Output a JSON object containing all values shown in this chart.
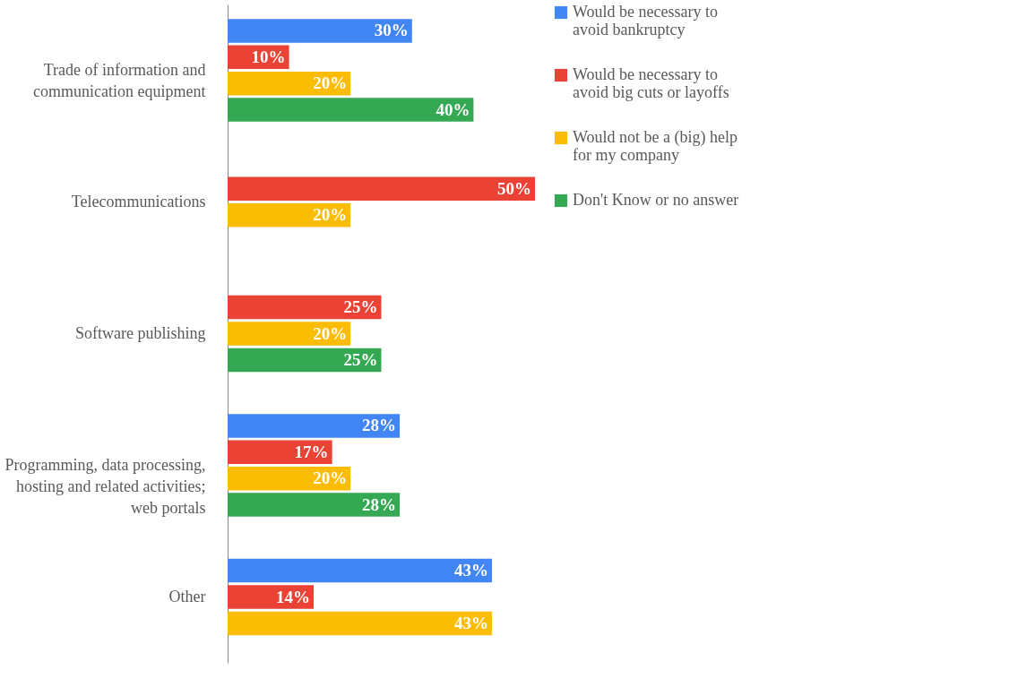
{
  "chart_data": {
    "type": "bar",
    "orientation": "horizontal",
    "legend": "right",
    "categories": [
      "Trade of information and communication equipment",
      "Telecommunications",
      "Software publishing",
      "Programming, data processing, hosting and related activities; web portals",
      "Other"
    ],
    "series": [
      {
        "name": "Would be necessary to avoid bankruptcy",
        "color": "#4285f4",
        "values": [
          30,
          null,
          null,
          28,
          43
        ],
        "value_labels": [
          "30%",
          null,
          null,
          "28%",
          "43%"
        ]
      },
      {
        "name": "Would be necessary to avoid big cuts or layoffs",
        "color": "#ea4335",
        "values": [
          10,
          50,
          25,
          17,
          14
        ],
        "value_labels": [
          "10%",
          "50%",
          "25%",
          "17%",
          "14%"
        ]
      },
      {
        "name": "Would not be a (big) help for my company",
        "color": "#fbbc04",
        "values": [
          20,
          20,
          20,
          20,
          43
        ],
        "value_labels": [
          "20%",
          "20%",
          "20%",
          "20%",
          "43%"
        ]
      },
      {
        "name": "Don't Know or no answer",
        "color": "#34a853",
        "values": [
          40,
          null,
          25,
          28,
          null
        ],
        "value_labels": [
          "40%",
          null,
          "25%",
          "28%",
          null
        ]
      }
    ]
  }
}
